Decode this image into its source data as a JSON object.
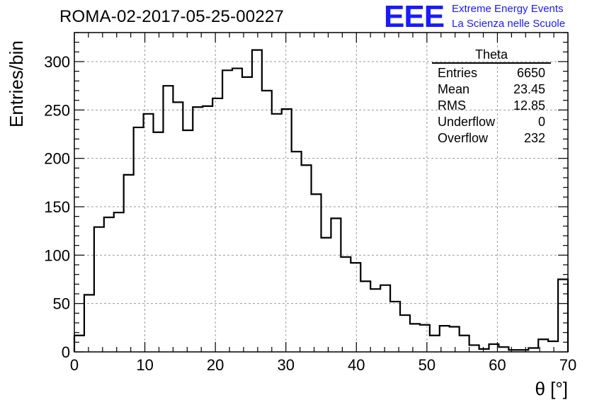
{
  "header": {
    "title": "ROMA-02-2017-05-25-00227",
    "logo_text": "EEE",
    "logo_line1": "Extreme Energy Events",
    "logo_line2": "La Scienza nelle Scuole"
  },
  "stats_box": {
    "title": "Theta",
    "rows": [
      {
        "label": "Entries",
        "value": "6650"
      },
      {
        "label": "Mean",
        "value": "23.45"
      },
      {
        "label": "RMS",
        "value": "12.85"
      },
      {
        "label": "Underflow",
        "value": "0"
      },
      {
        "label": "Overflow",
        "value": "232"
      }
    ]
  },
  "colors": {
    "logo": "#1a1aff",
    "line": "#000000",
    "grid": "#9a9a9a"
  },
  "chart_data": {
    "type": "histogram",
    "xlabel": "θ [°]",
    "ylabel": "Entries/bin",
    "xlim": [
      0,
      70
    ],
    "ylim": [
      0,
      330
    ],
    "grid": true,
    "bin_width": 1.4,
    "x_ticks": [
      0,
      10,
      20,
      30,
      40,
      50,
      60,
      70
    ],
    "y_ticks": [
      0,
      50,
      100,
      150,
      200,
      250,
      300
    ],
    "bin_edges_start": 0,
    "values": [
      17,
      59,
      129,
      139,
      144,
      183,
      232,
      246,
      227,
      275,
      258,
      229,
      253,
      254,
      262,
      291,
      293,
      284,
      312,
      270,
      246,
      251,
      207,
      193,
      163,
      118,
      138,
      98,
      92,
      73,
      65,
      69,
      52,
      38,
      29,
      28,
      17,
      27,
      26,
      17,
      7,
      3,
      8,
      5,
      2,
      2,
      4,
      13,
      11,
      75
    ]
  }
}
